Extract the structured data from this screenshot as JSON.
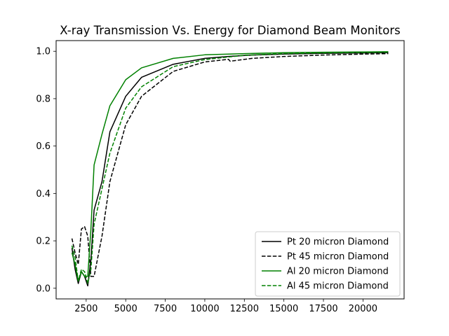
{
  "chart_data": {
    "type": "line",
    "title": "X-ray Transmission Vs. Energy for Diamond Beam Monitors",
    "xlabel": "",
    "ylabel": "",
    "xlim": [
      600,
      22600
    ],
    "ylim": [
      -0.045,
      1.045
    ],
    "xticks": [
      2500,
      5000,
      7500,
      10000,
      12500,
      15000,
      17500,
      20000
    ],
    "xtick_labels": [
      "2500",
      "5000",
      "7500",
      "10000",
      "12500",
      "15000",
      "17500",
      "20000"
    ],
    "yticks": [
      0.0,
      0.2,
      0.4,
      0.6,
      0.8,
      1.0
    ],
    "ytick_labels": [
      "0.0",
      "0.2",
      "0.4",
      "0.6",
      "0.8",
      "1.0"
    ],
    "grid": false,
    "legend_position": "lower-right",
    "series": [
      {
        "name": "Pt 20 micron Diamond",
        "color": "#000000",
        "dashed": false,
        "x": [
          1600,
          1800,
          2000,
          2200,
          2400,
          2600,
          2800,
          3000,
          3500,
          4000,
          5000,
          6000,
          8000,
          10000,
          11500,
          13000,
          15000,
          17500,
          20000,
          21600
        ],
        "y": [
          0.17,
          0.08,
          0.02,
          0.07,
          0.05,
          0.01,
          0.12,
          0.33,
          0.45,
          0.66,
          0.81,
          0.89,
          0.945,
          0.97,
          0.978,
          0.984,
          0.988,
          0.991,
          0.993,
          0.994
        ]
      },
      {
        "name": "Pt 45 micron Diamond",
        "color": "#000000",
        "dashed": true,
        "x": [
          1600,
          1800,
          2000,
          2200,
          2400,
          2600,
          2800,
          3000,
          3500,
          4000,
          5000,
          6000,
          8000,
          10000,
          11500,
          11600,
          13000,
          15000,
          17500,
          20000,
          21600
        ],
        "y": [
          0.21,
          0.15,
          0.1,
          0.25,
          0.26,
          0.22,
          0.05,
          0.05,
          0.22,
          0.45,
          0.69,
          0.81,
          0.915,
          0.955,
          0.966,
          0.958,
          0.97,
          0.978,
          0.984,
          0.988,
          0.99
        ]
      },
      {
        "name": "Al 20 micron Diamond",
        "color": "#008000",
        "dashed": false,
        "x": [
          1600,
          1800,
          2000,
          2200,
          2400,
          2600,
          2800,
          3000,
          3500,
          4000,
          5000,
          6000,
          8000,
          10000,
          12500,
          15000,
          17500,
          20000,
          21600
        ],
        "y": [
          0.15,
          0.1,
          0.03,
          0.07,
          0.05,
          0.05,
          0.25,
          0.52,
          0.65,
          0.77,
          0.88,
          0.93,
          0.97,
          0.985,
          0.99,
          0.994,
          0.996,
          0.997,
          0.998
        ]
      },
      {
        "name": "Al 45 micron Diamond",
        "color": "#008000",
        "dashed": true,
        "x": [
          1600,
          1800,
          2000,
          2200,
          2400,
          2600,
          2800,
          3000,
          3500,
          4000,
          5000,
          6000,
          8000,
          10000,
          12500,
          15000,
          17500,
          20000,
          21600
        ],
        "y": [
          0.18,
          0.13,
          0.03,
          0.08,
          0.07,
          0.02,
          0.08,
          0.27,
          0.42,
          0.57,
          0.76,
          0.85,
          0.935,
          0.965,
          0.983,
          0.99,
          0.993,
          0.995,
          0.996
        ]
      }
    ]
  }
}
